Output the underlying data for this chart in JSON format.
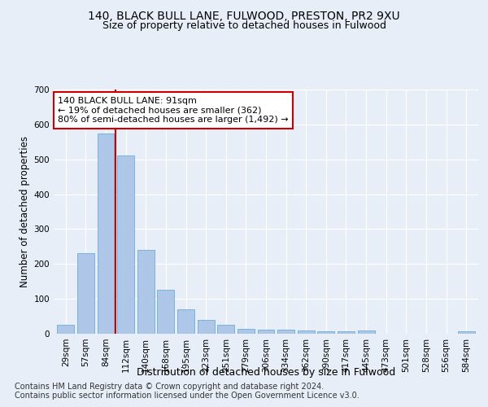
{
  "title1": "140, BLACK BULL LANE, FULWOOD, PRESTON, PR2 9XU",
  "title2": "Size of property relative to detached houses in Fulwood",
  "xlabel": "Distribution of detached houses by size in Fulwood",
  "ylabel": "Number of detached properties",
  "categories": [
    "29sqm",
    "57sqm",
    "84sqm",
    "112sqm",
    "140sqm",
    "168sqm",
    "195sqm",
    "223sqm",
    "251sqm",
    "279sqm",
    "306sqm",
    "334sqm",
    "362sqm",
    "390sqm",
    "417sqm",
    "445sqm",
    "473sqm",
    "501sqm",
    "528sqm",
    "556sqm",
    "584sqm"
  ],
  "values": [
    25,
    230,
    575,
    510,
    240,
    125,
    70,
    40,
    25,
    15,
    12,
    11,
    10,
    7,
    7,
    9,
    0,
    0,
    0,
    0,
    8
  ],
  "bar_color": "#aec6e8",
  "bar_edgecolor": "#6aaed6",
  "red_line_x": 2.5,
  "annotation_text": "140 BLACK BULL LANE: 91sqm\n← 19% of detached houses are smaller (362)\n80% of semi-detached houses are larger (1,492) →",
  "annotation_box_color": "#ffffff",
  "annotation_box_edgecolor": "#cc0000",
  "ylim": [
    0,
    700
  ],
  "yticks": [
    0,
    100,
    200,
    300,
    400,
    500,
    600,
    700
  ],
  "footer1": "Contains HM Land Registry data © Crown copyright and database right 2024.",
  "footer2": "Contains public sector information licensed under the Open Government Licence v3.0.",
  "background_color": "#e8eef7",
  "grid_color": "#ffffff",
  "title1_fontsize": 10,
  "title2_fontsize": 9,
  "xlabel_fontsize": 9,
  "ylabel_fontsize": 8.5,
  "tick_fontsize": 7.5,
  "annotation_fontsize": 8,
  "footer_fontsize": 7
}
